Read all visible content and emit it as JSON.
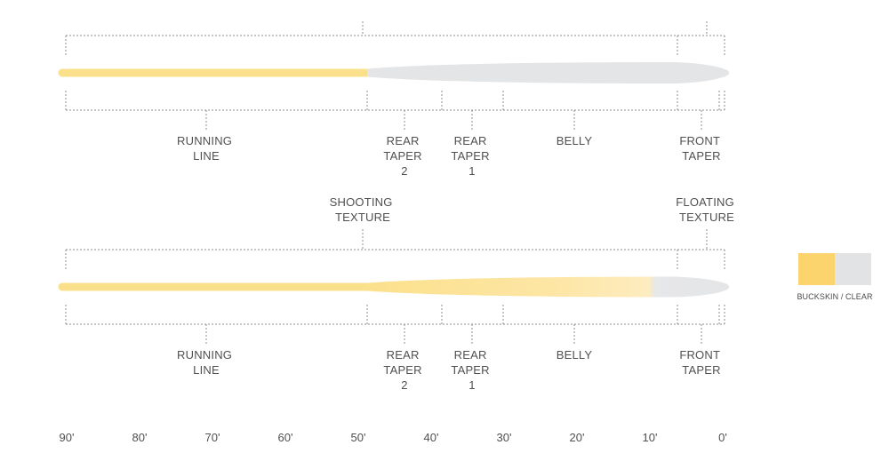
{
  "top_diagram": {
    "sections": [
      {
        "id": "running-line",
        "label": [
          "RUNNING",
          "LINE"
        ]
      },
      {
        "id": "rear-taper-2",
        "label": [
          "REAR",
          "TAPER",
          "2"
        ]
      },
      {
        "id": "rear-taper-1",
        "label": [
          "REAR",
          "TAPER",
          "1"
        ]
      },
      {
        "id": "belly",
        "label": [
          "BELLY"
        ]
      },
      {
        "id": "front-taper",
        "label": [
          "FRONT",
          "TAPER"
        ]
      }
    ],
    "line_colors": {
      "running": "#fbe08b",
      "head": "#e4e5e7"
    }
  },
  "textures": {
    "shooting": [
      "SHOOTING",
      "TEXTURE"
    ],
    "floating": [
      "FLOATING",
      "TEXTURE"
    ]
  },
  "bottom_diagram": {
    "sections": [
      {
        "id": "running-line",
        "label": [
          "RUNNING",
          "LINE"
        ]
      },
      {
        "id": "rear-taper-2",
        "label": [
          "REAR",
          "TAPER",
          "2"
        ]
      },
      {
        "id": "rear-taper-1",
        "label": [
          "REAR",
          "TAPER",
          "1"
        ]
      },
      {
        "id": "belly",
        "label": [
          "BELLY"
        ]
      },
      {
        "id": "front-taper",
        "label": [
          "FRONT",
          "TAPER"
        ]
      }
    ],
    "line_colors": {
      "running": "#fbe08b",
      "tip": "#e4e5e7"
    }
  },
  "scale": {
    "ticks": [
      "90'",
      "80'",
      "70'",
      "60'",
      "50'",
      "40'",
      "30'",
      "20'",
      "10'",
      "0'"
    ]
  },
  "legend": {
    "label": "BUCKSKIN / CLEAR",
    "colors": {
      "buckskin": "#fbd46d",
      "clear": "#e2e3e5"
    }
  }
}
